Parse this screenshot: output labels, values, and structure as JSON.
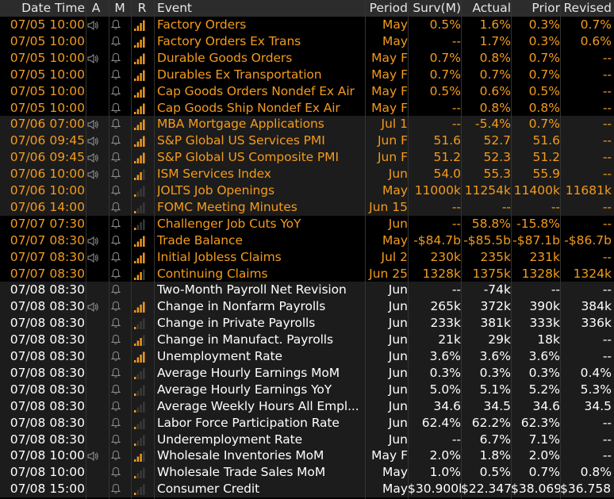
{
  "columns": {
    "datetime": "Date Time",
    "alert": "A",
    "mute": "M",
    "relevance": "R",
    "event": "Event",
    "period": "Period",
    "survey": "Surv(M)",
    "actual": "Actual",
    "prior": "Prior",
    "revised": "Revised"
  },
  "colors": {
    "orange": "#f39b1d",
    "white": "#ffffff",
    "header_bg": "#2c2c2c",
    "stripe_bg": "#1c1c1c"
  },
  "rows": [
    {
      "dt": "07/05 10:00",
      "alert": true,
      "bars": 4,
      "event": "Factory Orders",
      "period": "May",
      "survey": "0.5%",
      "actual": "1.6%",
      "prior": "0.3%",
      "revised": "0.7%",
      "tone": "orange",
      "bg": "black"
    },
    {
      "dt": "07/05 10:00",
      "alert": false,
      "bars": 4,
      "event": "Factory Orders Ex Trans",
      "period": "May",
      "survey": "--",
      "actual": "1.7%",
      "prior": "0.3%",
      "revised": "0.6%",
      "tone": "orange",
      "bg": "black"
    },
    {
      "dt": "07/05 10:00",
      "alert": true,
      "bars": 4,
      "event": "Durable Goods Orders",
      "period": "May F",
      "survey": "0.7%",
      "actual": "0.8%",
      "prior": "0.7%",
      "revised": "--",
      "tone": "orange",
      "bg": "black"
    },
    {
      "dt": "07/05 10:00",
      "alert": false,
      "bars": 4,
      "event": "Durables Ex Transportation",
      "period": "May F",
      "survey": "0.7%",
      "actual": "0.7%",
      "prior": "0.7%",
      "revised": "--",
      "tone": "orange",
      "bg": "black"
    },
    {
      "dt": "07/05 10:00",
      "alert": false,
      "bars": 4,
      "event": "Cap Goods Orders Nondef Ex Air",
      "period": "May F",
      "survey": "0.5%",
      "actual": "0.6%",
      "prior": "0.5%",
      "revised": "--",
      "tone": "orange",
      "bg": "black"
    },
    {
      "dt": "07/05 10:00",
      "alert": false,
      "bars": 4,
      "event": "Cap Goods Ship Nondef Ex Air",
      "period": "May F",
      "survey": "--",
      "actual": "0.8%",
      "prior": "0.8%",
      "revised": "--",
      "tone": "orange",
      "bg": "black"
    },
    {
      "dt": "07/06 07:00",
      "alert": true,
      "bars": 4,
      "event": "MBA Mortgage Applications",
      "period": "Jul 1",
      "survey": "--",
      "actual": "-5.4%",
      "prior": "0.7%",
      "revised": "--",
      "tone": "orange",
      "bg": "gray"
    },
    {
      "dt": "07/06 09:45",
      "alert": true,
      "bars": 4,
      "event": "S&P Global US Services PMI",
      "period": "Jun F",
      "survey": "51.6",
      "actual": "52.7",
      "prior": "51.6",
      "revised": "--",
      "tone": "orange",
      "bg": "gray"
    },
    {
      "dt": "07/06 09:45",
      "alert": true,
      "bars": 4,
      "event": "S&P Global US Composite PMI",
      "period": "Jun F",
      "survey": "51.2",
      "actual": "52.3",
      "prior": "51.2",
      "revised": "--",
      "tone": "orange",
      "bg": "gray"
    },
    {
      "dt": "07/06 10:00",
      "alert": true,
      "bars": 3,
      "event": "ISM Services Index",
      "period": "Jun",
      "survey": "54.0",
      "actual": "55.3",
      "prior": "55.9",
      "revised": "--",
      "tone": "orange",
      "bg": "gray"
    },
    {
      "dt": "07/06 10:00",
      "alert": false,
      "bars": 1,
      "event": "JOLTS Job Openings",
      "period": "May",
      "survey": "11000k",
      "actual": "11254k",
      "prior": "11400k",
      "revised": "11681k",
      "tone": "orange",
      "bg": "gray"
    },
    {
      "dt": "07/06 14:00",
      "alert": false,
      "bars": 1,
      "event": "FOMC Meeting Minutes",
      "period": "Jun 15",
      "survey": "--",
      "actual": "--",
      "prior": "--",
      "revised": "--",
      "tone": "orange",
      "bg": "gray"
    },
    {
      "dt": "07/07 07:30",
      "alert": false,
      "bars": 1,
      "event": "Challenger Job Cuts YoY",
      "period": "Jun",
      "survey": "--",
      "actual": "58.8%",
      "prior": "-15.8%",
      "revised": "--",
      "tone": "orange",
      "bg": "black"
    },
    {
      "dt": "07/07 08:30",
      "alert": true,
      "bars": 4,
      "event": "Trade Balance",
      "period": "May",
      "survey": "-$84.7b",
      "actual": "-$85.5b",
      "prior": "-$87.1b",
      "revised": "-$86.7b",
      "tone": "orange",
      "bg": "black"
    },
    {
      "dt": "07/07 08:30",
      "alert": true,
      "bars": 4,
      "event": "Initial Jobless Claims",
      "period": "Jul 2",
      "survey": "230k",
      "actual": "235k",
      "prior": "231k",
      "revised": "--",
      "tone": "orange",
      "bg": "black"
    },
    {
      "dt": "07/07 08:30",
      "alert": false,
      "bars": 3,
      "event": "Continuing Claims",
      "period": "Jun 25",
      "survey": "1328k",
      "actual": "1375k",
      "prior": "1328k",
      "revised": "1324k",
      "tone": "orange",
      "bg": "black"
    },
    {
      "dt": "07/08 08:30",
      "alert": false,
      "bars": 0,
      "event": "Two-Month Payroll Net Revision",
      "period": "Jun",
      "survey": "--",
      "actual": "-74k",
      "prior": "--",
      "revised": "--",
      "tone": "white",
      "bg": "gray"
    },
    {
      "dt": "07/08 08:30",
      "alert": true,
      "bars": 4,
      "event": "Change in Nonfarm Payrolls",
      "period": "Jun",
      "survey": "265k",
      "actual": "372k",
      "prior": "390k",
      "revised": "384k",
      "tone": "white",
      "bg": "gray"
    },
    {
      "dt": "07/08 08:30",
      "alert": false,
      "bars": 1,
      "event": "Change in Private Payrolls",
      "period": "Jun",
      "survey": "233k",
      "actual": "381k",
      "prior": "333k",
      "revised": "336k",
      "tone": "white",
      "bg": "gray"
    },
    {
      "dt": "07/08 08:30",
      "alert": false,
      "bars": 3,
      "event": "Change in Manufact. Payrolls",
      "period": "Jun",
      "survey": "21k",
      "actual": "29k",
      "prior": "18k",
      "revised": "--",
      "tone": "white",
      "bg": "gray"
    },
    {
      "dt": "07/08 08:30",
      "alert": false,
      "bars": 4,
      "event": "Unemployment Rate",
      "period": "Jun",
      "survey": "3.6%",
      "actual": "3.6%",
      "prior": "3.6%",
      "revised": "--",
      "tone": "white",
      "bg": "gray"
    },
    {
      "dt": "07/08 08:30",
      "alert": false,
      "bars": 1,
      "event": "Average Hourly Earnings MoM",
      "period": "Jun",
      "survey": "0.3%",
      "actual": "0.3%",
      "prior": "0.3%",
      "revised": "0.4%",
      "tone": "white",
      "bg": "gray"
    },
    {
      "dt": "07/08 08:30",
      "alert": false,
      "bars": 1,
      "event": "Average Hourly Earnings YoY",
      "period": "Jun",
      "survey": "5.0%",
      "actual": "5.1%",
      "prior": "5.2%",
      "revised": "5.3%",
      "tone": "white",
      "bg": "gray"
    },
    {
      "dt": "07/08 08:30",
      "alert": false,
      "bars": 1,
      "event": "Average Weekly Hours All Empl...",
      "period": "Jun",
      "survey": "34.6",
      "actual": "34.5",
      "prior": "34.6",
      "revised": "34.5",
      "tone": "white",
      "bg": "gray"
    },
    {
      "dt": "07/08 08:30",
      "alert": false,
      "bars": 1,
      "event": "Labor Force Participation Rate",
      "period": "Jun",
      "survey": "62.4%",
      "actual": "62.2%",
      "prior": "62.3%",
      "revised": "--",
      "tone": "white",
      "bg": "gray"
    },
    {
      "dt": "07/08 08:30",
      "alert": false,
      "bars": 1,
      "event": "Underemployment Rate",
      "period": "Jun",
      "survey": "--",
      "actual": "6.7%",
      "prior": "7.1%",
      "revised": "--",
      "tone": "white",
      "bg": "gray"
    },
    {
      "dt": "07/08 10:00",
      "alert": true,
      "bars": 3,
      "event": "Wholesale Inventories MoM",
      "period": "May F",
      "survey": "2.0%",
      "actual": "1.8%",
      "prior": "2.0%",
      "revised": "--",
      "tone": "white",
      "bg": "gray"
    },
    {
      "dt": "07/08 10:00",
      "alert": false,
      "bars": 1,
      "event": "Wholesale Trade Sales MoM",
      "period": "May",
      "survey": "1.0%",
      "actual": "0.5%",
      "prior": "0.7%",
      "revised": "0.8%",
      "tone": "white",
      "bg": "gray"
    },
    {
      "dt": "07/08 15:00",
      "alert": false,
      "bars": 1,
      "event": "Consumer Credit",
      "period": "May",
      "survey": "$30.900b",
      "actual": "$22.347b",
      "prior": "$38.069b",
      "revised": "$36.758b",
      "tone": "white",
      "bg": "gray"
    }
  ]
}
